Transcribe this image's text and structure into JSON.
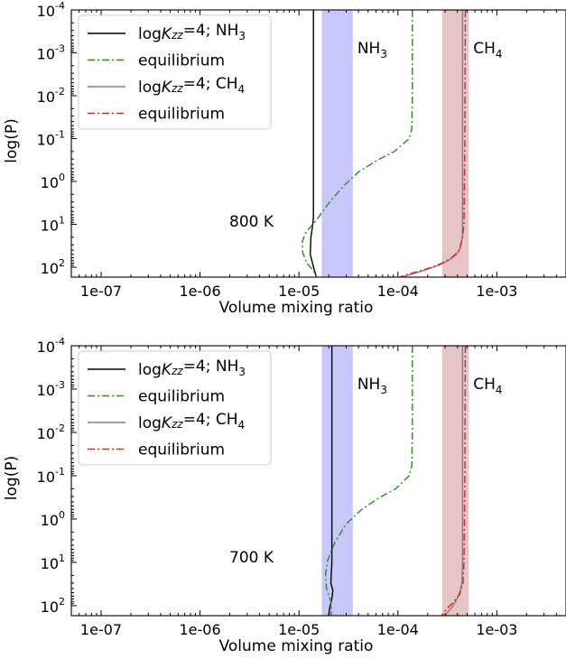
{
  "chart_data": [
    {
      "type": "line",
      "annotation": "800 K",
      "xlabel": "Volume mixing ratio",
      "ylabel": "log(P)",
      "xscale": "log",
      "yscale": "log",
      "yinverted": true,
      "xlim": [
        5e-08,
        0.005
      ],
      "ylim": [
        170,
        0.0001
      ],
      "xticks": [
        1e-07,
        1e-06,
        1e-05,
        0.0001,
        0.001
      ],
      "xtick_labels": [
        "1e-07",
        "1e-06",
        "1e-05",
        "1e-04",
        "1e-03"
      ],
      "ytick_exponents": [
        "-4",
        "-3",
        "-2",
        "-1",
        "0",
        "1",
        "2"
      ],
      "yticks": [
        0.0001,
        0.001,
        0.01,
        0.1,
        1,
        10,
        100
      ],
      "legend_position": "top-left",
      "bands": [
        {
          "label_base": "NH",
          "label_sub": "3",
          "x0": 1.7e-05,
          "x1": 3.5e-05,
          "color": "#c8c8fa"
        },
        {
          "label_base": "CH",
          "label_sub": "4",
          "x0": 0.00028,
          "x1": 0.00052,
          "color": "#e5c5c5"
        }
      ],
      "series": [
        {
          "legend_main": "logK",
          "legend_sub": "zz",
          "legend_rest": "=4; NH",
          "legend_chem": "3",
          "color": "#000000",
          "dash": "",
          "points": [
            [
              1.4e-05,
              0.0001
            ],
            [
              1.4e-05,
              1
            ],
            [
              1.4e-05,
              7
            ],
            [
              1.38e-05,
              10
            ],
            [
              1.32e-05,
              20
            ],
            [
              1.3e-05,
              50
            ],
            [
              1.42e-05,
              110
            ],
            [
              1.5e-05,
              170
            ]
          ]
        },
        {
          "legend_main": "equilibrium",
          "color": "#2e8b22",
          "dash": "8,3,2,3",
          "points": [
            [
              0.00014,
              0.0001
            ],
            [
              0.00014,
              0.01
            ],
            [
              0.000138,
              0.06
            ],
            [
              0.00013,
              0.1
            ],
            [
              9.2e-05,
              0.2
            ],
            [
              6.2e-05,
              0.32
            ],
            [
              4e-05,
              0.6
            ],
            [
              2.8e-05,
              1.3
            ],
            [
              2e-05,
              3.2
            ],
            [
              1.5e-05,
              8
            ],
            [
              1.18e-05,
              15
            ],
            [
              1.08e-05,
              25
            ],
            [
              1.09e-05,
              45
            ],
            [
              1.2e-05,
              80
            ],
            [
              1.4e-05,
              120
            ],
            [
              1.5e-05,
              170
            ]
          ]
        },
        {
          "legend_main": "logK",
          "legend_sub": "zz",
          "legend_rest": "=4; CH",
          "legend_chem": "4",
          "color": "#808080",
          "dash": "",
          "points": [
            [
              0.00045,
              0.0001
            ],
            [
              0.00045,
              10
            ],
            [
              0.000448,
              20
            ],
            [
              0.00042,
              38
            ],
            [
              0.00039,
              50
            ],
            [
              0.00033,
              68
            ],
            [
              0.00026,
              90
            ],
            [
              0.00017,
              125
            ],
            [
              0.00013,
              150
            ],
            [
              0.00011,
              170
            ]
          ]
        },
        {
          "legend_main": "equilibrium",
          "color": "#e8201c",
          "dash": "8,3,2,3",
          "points": [
            [
              0.00048,
              0.0001
            ],
            [
              0.000475,
              0.1
            ],
            [
              0.00047,
              1
            ],
            [
              0.000465,
              10
            ],
            [
              0.00045,
              20
            ],
            [
              0.00042,
              40
            ],
            [
              0.00035,
              60
            ],
            [
              0.00028,
              80
            ],
            [
              0.00022,
              100
            ],
            [
              0.00016,
              125
            ],
            [
              0.00012,
              150
            ],
            [
              0.000105,
              170
            ]
          ]
        }
      ]
    },
    {
      "type": "line",
      "annotation": "700 K",
      "xlabel": "Volume mixing ratio",
      "ylabel": "log(P)",
      "xscale": "log",
      "yscale": "log",
      "yinverted": true,
      "xlim": [
        5e-08,
        0.005
      ],
      "ylim": [
        170,
        0.0001
      ],
      "xticks": [
        1e-07,
        1e-06,
        1e-05,
        0.0001,
        0.001
      ],
      "xtick_labels": [
        "1e-07",
        "1e-06",
        "1e-05",
        "1e-04",
        "1e-03"
      ],
      "ytick_exponents": [
        "-4",
        "-3",
        "-2",
        "-1",
        "0",
        "1",
        "2"
      ],
      "yticks": [
        0.0001,
        0.001,
        0.01,
        0.1,
        1,
        10,
        100
      ],
      "legend_position": "top-left",
      "bands": [
        {
          "label_base": "NH",
          "label_sub": "3",
          "x0": 1.7e-05,
          "x1": 3.5e-05,
          "color": "#c8c8fa"
        },
        {
          "label_base": "CH",
          "label_sub": "4",
          "x0": 0.00028,
          "x1": 0.00052,
          "color": "#e5c5c5"
        }
      ],
      "series": [
        {
          "legend_main": "logK",
          "legend_sub": "zz",
          "legend_rest": "=4; NH",
          "legend_chem": "3",
          "color": "#000000",
          "dash": "",
          "points": [
            [
              2.15e-05,
              0.0001
            ],
            [
              2.15e-05,
              1
            ],
            [
              2.15e-05,
              10
            ],
            [
              2.1e-05,
              30
            ],
            [
              2.2e-05,
              45
            ],
            [
              2.15e-05,
              70
            ],
            [
              2.05e-05,
              110
            ],
            [
              2e-05,
              170
            ]
          ]
        },
        {
          "legend_main": "equilibrium",
          "color": "#2e8b22",
          "dash": "8,3,2,3",
          "points": [
            [
              0.00014,
              0.0001
            ],
            [
              0.00014,
              0.01
            ],
            [
              0.000138,
              0.06
            ],
            [
              0.00013,
              0.1
            ],
            [
              9.5e-05,
              0.2
            ],
            [
              6.5e-05,
              0.32
            ],
            [
              4.3e-05,
              0.6
            ],
            [
              3e-05,
              1.3
            ],
            [
              2.3e-05,
              3.5
            ],
            [
              1.95e-05,
              9
            ],
            [
              1.85e-05,
              20
            ],
            [
              1.9e-05,
              40
            ],
            [
              2.1e-05,
              80
            ],
            [
              2.15e-05,
              120
            ],
            [
              2.1e-05,
              170
            ]
          ]
        },
        {
          "legend_main": "logK",
          "legend_sub": "zz",
          "legend_rest": "=4; CH",
          "legend_chem": "4",
          "color": "#808080",
          "dash": "",
          "points": [
            [
              0.00045,
              0.0001
            ],
            [
              0.00045,
              10
            ],
            [
              0.000445,
              30
            ],
            [
              0.00042,
              50
            ],
            [
              0.00039,
              75
            ],
            [
              0.00035,
              110
            ],
            [
              0.00032,
              140
            ],
            [
              0.0003,
              170
            ]
          ]
        },
        {
          "legend_main": "equilibrium",
          "color": "#e8201c",
          "dash": "8,3,2,3",
          "points": [
            [
              0.00048,
              0.0001
            ],
            [
              0.000475,
              0.1
            ],
            [
              0.00047,
              1
            ],
            [
              0.000465,
              10
            ],
            [
              0.000455,
              30
            ],
            [
              0.00042,
              55
            ],
            [
              0.00036,
              85
            ],
            [
              0.00031,
              120
            ],
            [
              0.000275,
              170
            ]
          ]
        }
      ]
    }
  ]
}
